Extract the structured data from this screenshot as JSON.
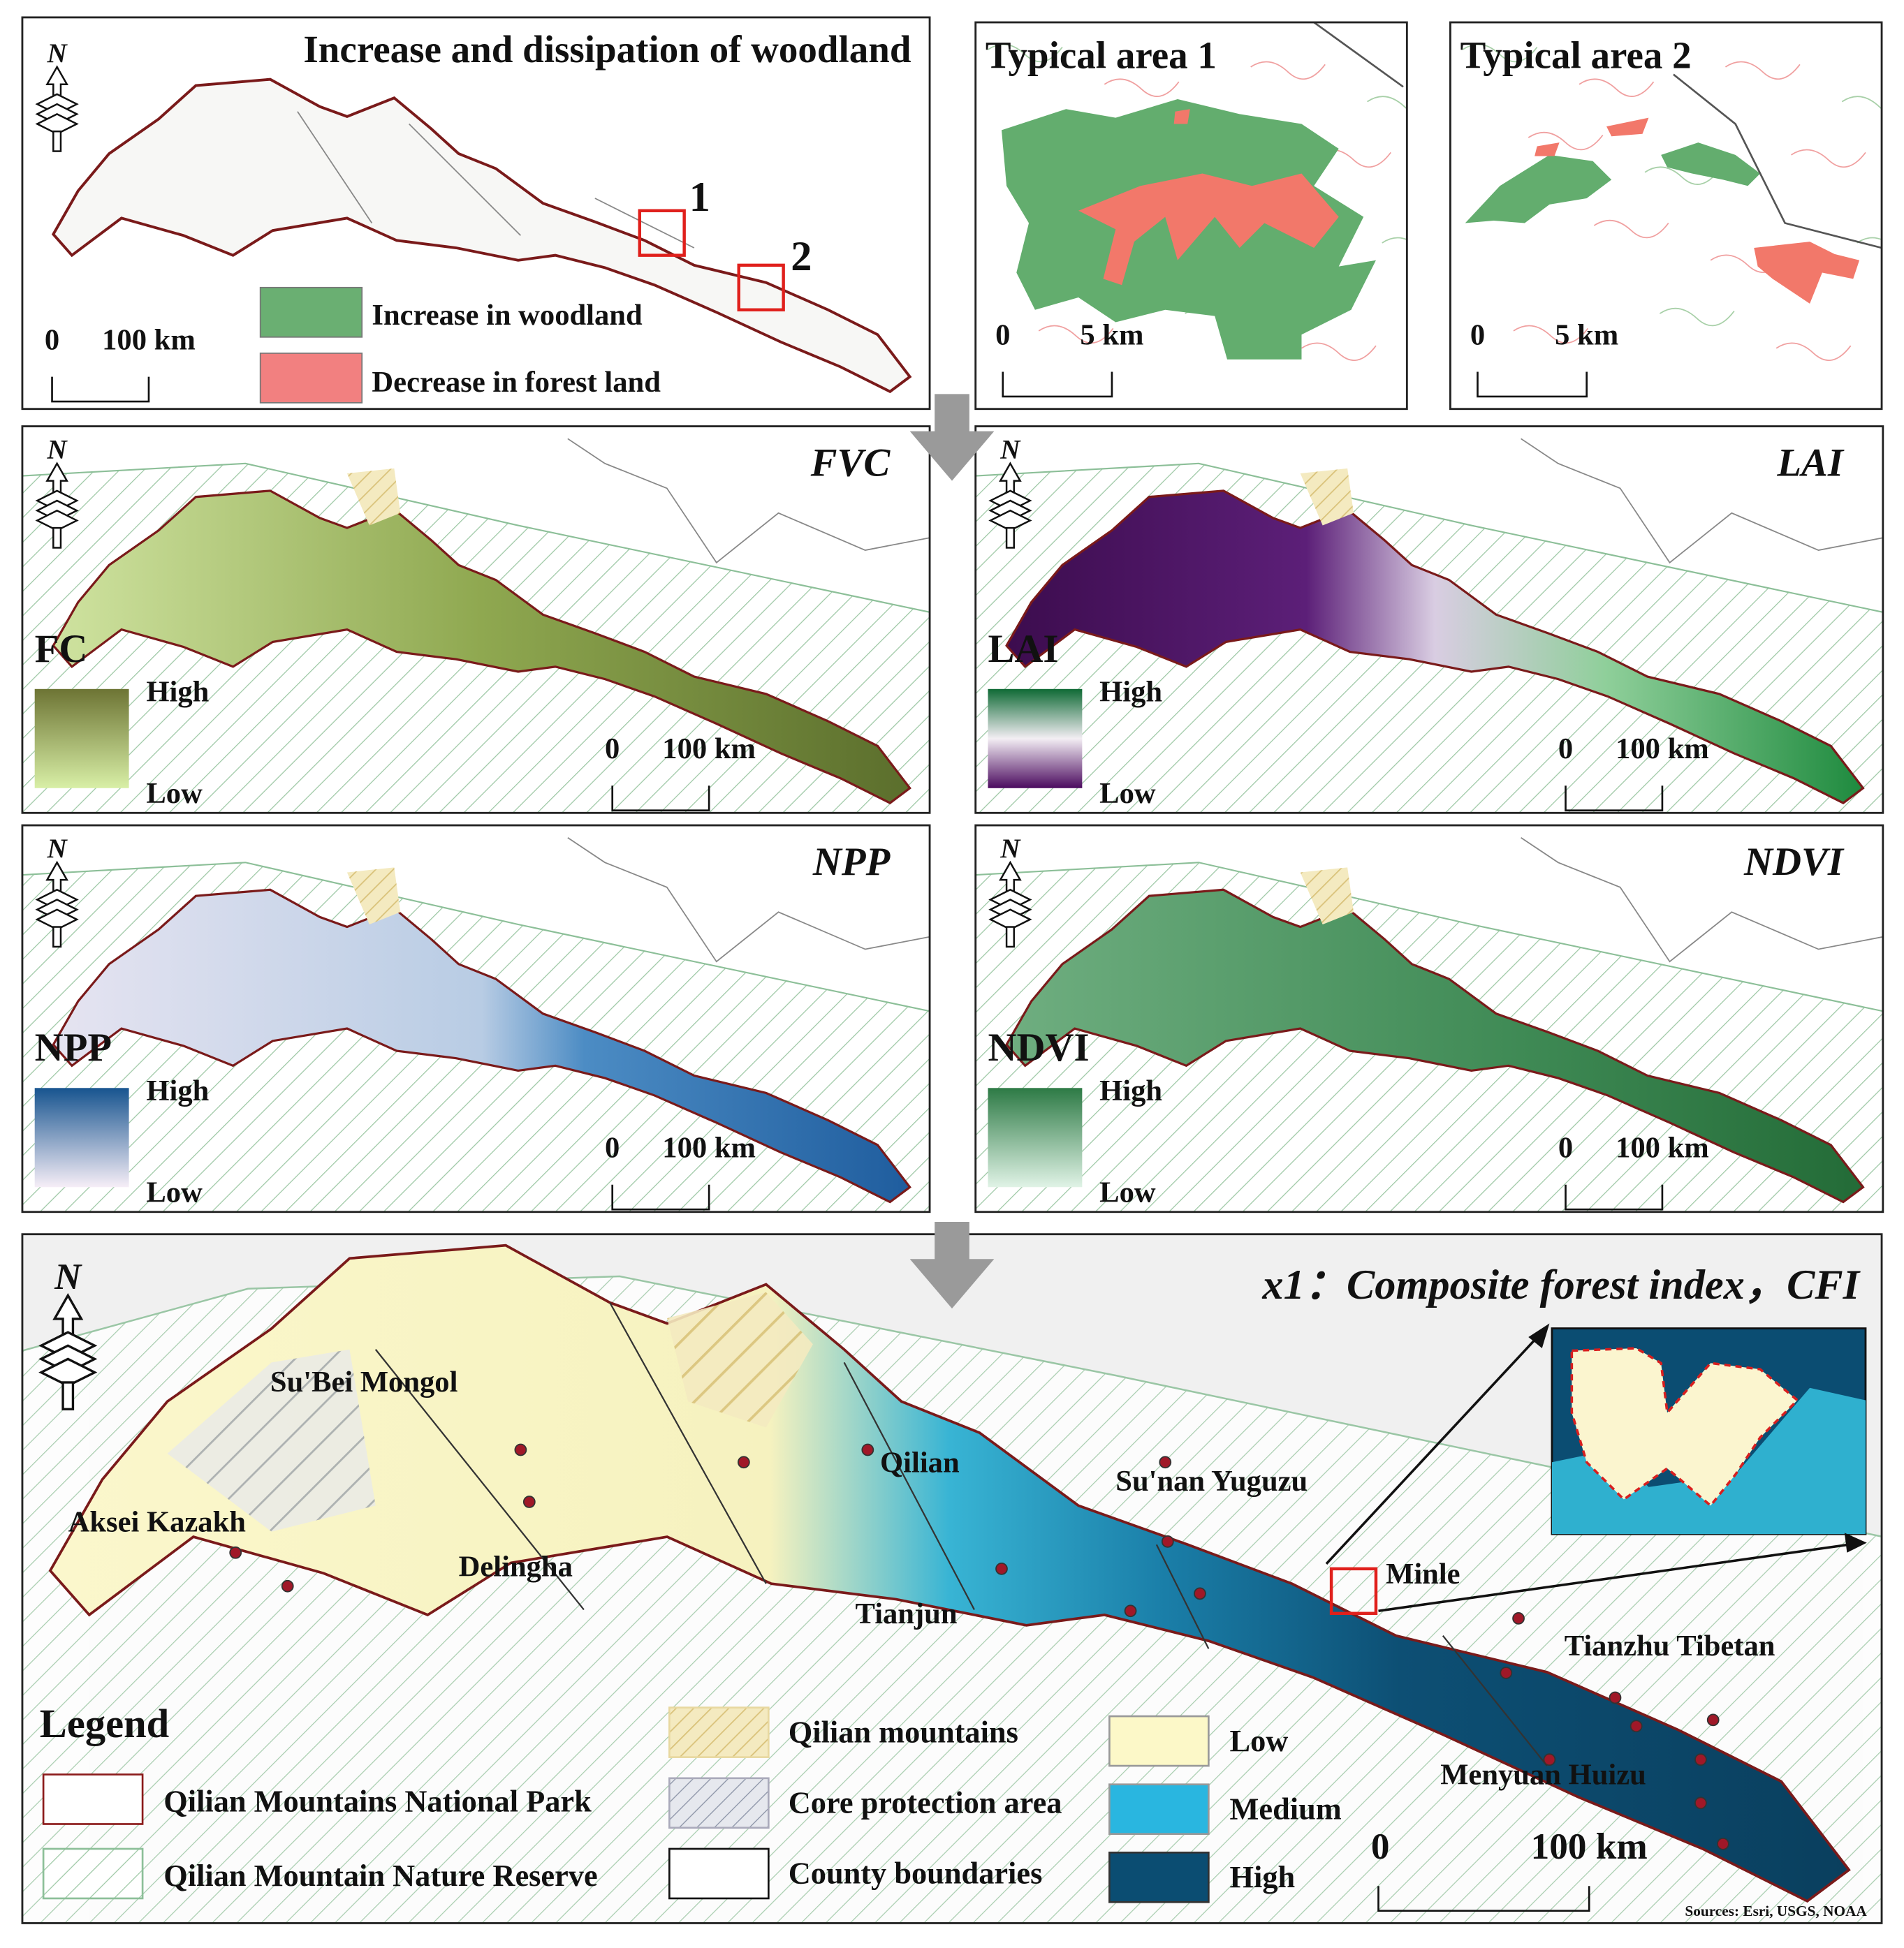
{
  "woodland_change": {
    "title": "Increase and dissipation of woodland",
    "north": "N",
    "area_labels": [
      "1",
      "2"
    ],
    "scale": [
      "0",
      "100 km"
    ],
    "legend": [
      "Increase in woodland",
      "Decrease in forest land"
    ]
  },
  "typical_areas": [
    {
      "title": "Typical area 1",
      "scale": [
        "0",
        "5 km"
      ]
    },
    {
      "title": "Typical area 2",
      "scale": [
        "0",
        "5 km"
      ]
    }
  ],
  "indices": [
    {
      "title": "FVC",
      "north": "N",
      "legend_title": "FC",
      "high": "High",
      "low": "Low",
      "scale": [
        "0",
        "100 km"
      ]
    },
    {
      "title": "LAI",
      "north": "N",
      "legend_title": "LAI",
      "high": "High",
      "low": "Low",
      "scale": [
        "0",
        "100 km"
      ]
    },
    {
      "title": "NPP",
      "north": "N",
      "legend_title": "NPP",
      "high": "High",
      "low": "Low",
      "scale": [
        "0",
        "100 km"
      ]
    },
    {
      "title": "NDVI",
      "north": "N",
      "legend_title": "NDVI",
      "high": "High",
      "low": "Low",
      "scale": [
        "0",
        "100 km"
      ]
    }
  ],
  "cfi": {
    "title": "x1：Composite forest index，CFI",
    "north": "N",
    "places": [
      "Su'Bei Mongol",
      "Qilian",
      "Su'nan Yuguzu",
      "Aksei Kazakh",
      "Delingha",
      "Tianjun",
      "Minle",
      "Tianzhu Tibetan",
      "Menyuan Huizu"
    ],
    "legend_title": "Legend",
    "legend": [
      "Qilian Mountains National Park",
      "Qilian Mountain Nature Reserve",
      "Qilian mountains",
      "Core protection area",
      "County boundaries",
      "Low",
      "Medium",
      "High"
    ],
    "scale": [
      "0",
      "100 km"
    ],
    "attribution": "Sources: Esri, USGS, NOAA"
  }
}
